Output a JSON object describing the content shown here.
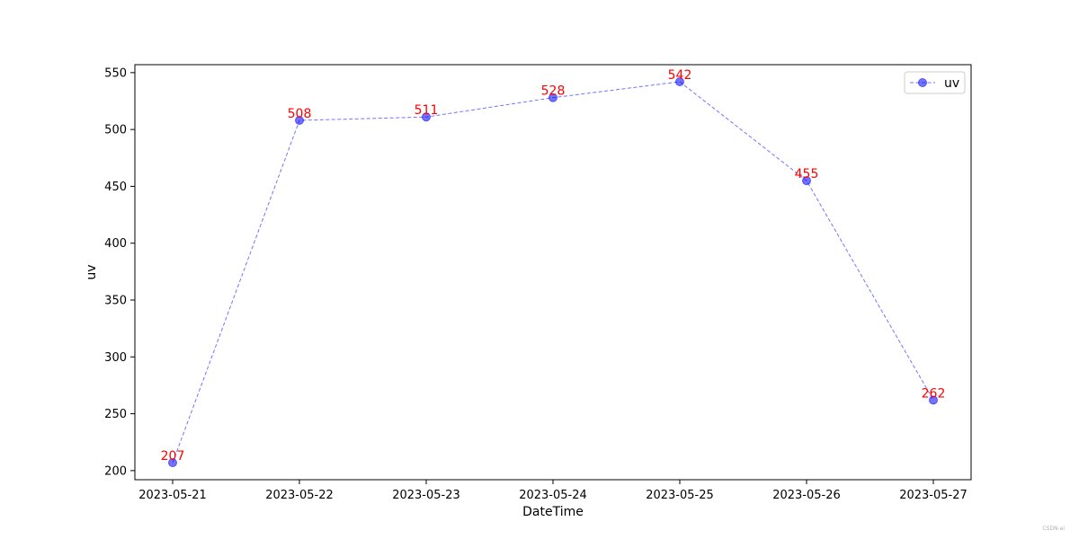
{
  "chart_data": {
    "type": "line",
    "title": "",
    "xlabel": "DateTime",
    "ylabel": "uv",
    "x": [
      "2023-05-21",
      "2023-05-22",
      "2023-05-23",
      "2023-05-24",
      "2023-05-25",
      "2023-05-26",
      "2023-05-27"
    ],
    "series": [
      {
        "name": "uv",
        "values": [
          207,
          508,
          511,
          528,
          542,
          455,
          262
        ],
        "color": "#0000ff",
        "line_style": "dashed",
        "marker": "circle"
      }
    ],
    "data_labels": [
      "207",
      "508",
      "511",
      "528",
      "542",
      "455",
      "262"
    ],
    "data_label_color": "#ff0000",
    "ylim": [
      192,
      557
    ],
    "yticks": [
      200,
      250,
      300,
      350,
      400,
      450,
      500,
      550
    ],
    "grid": false,
    "legend_position": "top-right"
  },
  "watermark": "CSDN-ai"
}
